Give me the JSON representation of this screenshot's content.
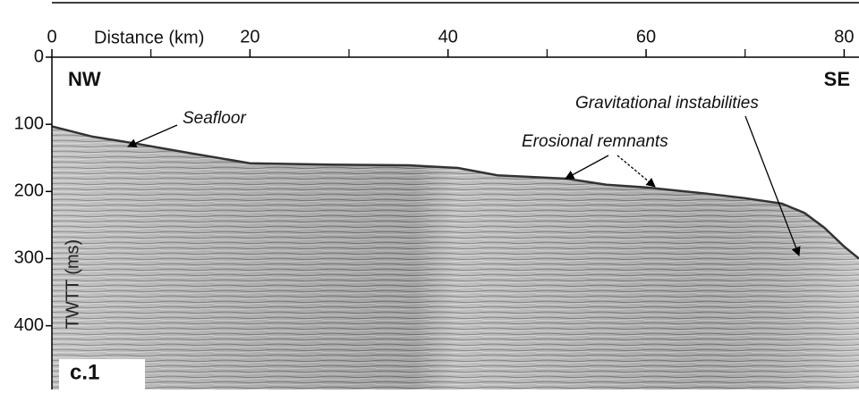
{
  "chart_data": {
    "type": "seismic-profile",
    "x_label": "Distance (km)",
    "y_label": "TWTT (ms)",
    "xlim": [
      0,
      81.5
    ],
    "xticks": [
      0,
      20,
      40,
      60,
      80
    ],
    "xminorticks": [
      10,
      30,
      50,
      70
    ],
    "ylim": [
      0,
      495
    ],
    "yticks": [
      0,
      100,
      200,
      300,
      400
    ],
    "left_label": "NW",
    "right_label": "SE",
    "panel_label": "c.1",
    "annotations": [
      "Erosional remnants",
      "Gravitational instabilities"
    ],
    "series": [
      {
        "name": "Seafloor",
        "color": "#333333",
        "x": [
          0,
          4,
          8.2,
          14,
          20,
          28,
          36,
          41,
          45,
          52,
          56,
          60,
          66,
          70,
          73.7,
          76,
          78,
          80,
          81.5
        ],
        "values": [
          103,
          118,
          128,
          143,
          158,
          160,
          161,
          165,
          176,
          181,
          190,
          194,
          203,
          210,
          218,
          232,
          254,
          282,
          300
        ]
      }
    ]
  }
}
